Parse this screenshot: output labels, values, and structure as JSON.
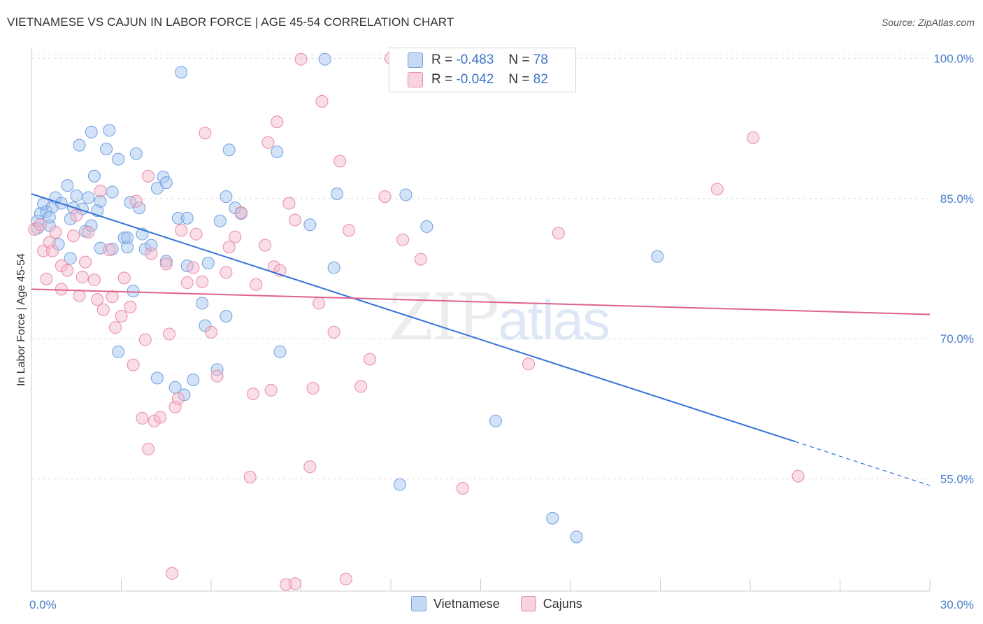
{
  "header": {
    "title": "VIETNAMESE VS CAJUN IN LABOR FORCE | AGE 45-54 CORRELATION CHART",
    "source": "Source: ZipAtlas.com"
  },
  "legend": {
    "rows": [
      {
        "r_label": "R =",
        "r_value": "-0.483",
        "n_label": "N =",
        "n_value": "78",
        "color": "#9ec0ee"
      },
      {
        "r_label": "R =",
        "r_value": "-0.042",
        "n_label": "N =",
        "n_value": "82",
        "color": "#f4b6c8"
      }
    ]
  },
  "bottom_legend": [
    {
      "label": "Vietnamese",
      "color": "#9ec0ee"
    },
    {
      "label": "Cajuns",
      "color": "#f4b6c8"
    }
  ],
  "watermark": {
    "zip": "ZIP",
    "atlas": "atlas"
  },
  "chart_data": {
    "type": "scatter",
    "title": "VIETNAMESE VS CAJUN IN LABOR FORCE | AGE 45-54 CORRELATION CHART",
    "xlabel": "",
    "ylabel": "In Labor Force | Age 45-54",
    "xlim": [
      0,
      30
    ],
    "ylim": [
      43,
      101
    ],
    "x_tick_labels": [
      {
        "value": 0,
        "label": "0.0%"
      },
      {
        "value": 30,
        "label": "30.0%"
      }
    ],
    "y_tick_labels": [
      {
        "value": 100,
        "label": "100.0%"
      },
      {
        "value": 85,
        "label": "85.0%"
      },
      {
        "value": 70,
        "label": "70.0%"
      },
      {
        "value": 55,
        "label": "55.0%"
      }
    ],
    "grid": true,
    "legend_position": "top-center",
    "series": [
      {
        "name": "Vietnamese",
        "color": "#6f9fe0",
        "fill": "rgba(158,192,238,0.45)",
        "trend": {
          "x": [
            0,
            25.5
          ],
          "y": [
            85.5,
            59.0
          ],
          "dashed_to": [
            30,
            54.3
          ],
          "color": "#3573d6"
        },
        "points": [
          [
            0.2,
            82.6
          ],
          [
            0.2,
            81.8
          ],
          [
            0.3,
            83.4
          ],
          [
            0.4,
            84.4
          ],
          [
            0.5,
            83.6
          ],
          [
            0.6,
            82.1
          ],
          [
            0.6,
            83.0
          ],
          [
            0.7,
            84.1
          ],
          [
            0.8,
            85.1
          ],
          [
            0.9,
            80.1
          ],
          [
            1.0,
            84.5
          ],
          [
            1.2,
            86.4
          ],
          [
            1.3,
            82.8
          ],
          [
            1.3,
            78.6
          ],
          [
            1.4,
            84.0
          ],
          [
            1.5,
            85.3
          ],
          [
            1.6,
            90.7
          ],
          [
            1.7,
            83.9
          ],
          [
            1.8,
            81.5
          ],
          [
            1.9,
            85.1
          ],
          [
            2.0,
            82.1
          ],
          [
            2.0,
            92.1
          ],
          [
            2.1,
            87.4
          ],
          [
            2.2,
            83.7
          ],
          [
            2.3,
            84.7
          ],
          [
            2.3,
            79.7
          ],
          [
            2.5,
            90.3
          ],
          [
            2.6,
            92.3
          ],
          [
            2.7,
            85.7
          ],
          [
            2.7,
            79.6
          ],
          [
            2.9,
            68.6
          ],
          [
            2.9,
            89.2
          ],
          [
            3.1,
            80.8
          ],
          [
            3.2,
            79.8
          ],
          [
            3.2,
            80.8
          ],
          [
            3.3,
            84.6
          ],
          [
            3.4,
            75.1
          ],
          [
            3.5,
            89.8
          ],
          [
            3.6,
            84.0
          ],
          [
            3.7,
            81.2
          ],
          [
            3.8,
            79.6
          ],
          [
            4.0,
            80.0
          ],
          [
            4.2,
            86.1
          ],
          [
            4.2,
            65.8
          ],
          [
            4.4,
            87.3
          ],
          [
            4.5,
            86.7
          ],
          [
            4.5,
            78.3
          ],
          [
            4.8,
            64.8
          ],
          [
            4.9,
            82.9
          ],
          [
            5.0,
            98.5
          ],
          [
            5.1,
            64.0
          ],
          [
            5.2,
            77.8
          ],
          [
            5.2,
            82.9
          ],
          [
            5.4,
            65.6
          ],
          [
            5.7,
            73.8
          ],
          [
            5.8,
            71.4
          ],
          [
            5.9,
            78.1
          ],
          [
            6.2,
            66.7
          ],
          [
            6.3,
            82.6
          ],
          [
            6.5,
            72.4
          ],
          [
            6.5,
            85.2
          ],
          [
            6.6,
            90.2
          ],
          [
            6.8,
            84.0
          ],
          [
            7.0,
            83.4
          ],
          [
            8.2,
            90.0
          ],
          [
            8.3,
            68.6
          ],
          [
            9.3,
            82.2
          ],
          [
            9.8,
            99.9
          ],
          [
            10.2,
            85.5
          ],
          [
            10.1,
            77.6
          ],
          [
            12.3,
            54.4
          ],
          [
            12.5,
            85.4
          ],
          [
            15.5,
            61.2
          ],
          [
            17.4,
            50.8
          ],
          [
            18.2,
            48.8
          ],
          [
            20.9,
            78.8
          ],
          [
            13.2,
            82.0
          ]
        ]
      },
      {
        "name": "Cajuns",
        "color": "#e98aa8",
        "fill": "rgba(244,182,200,0.45)",
        "trend": {
          "x": [
            0,
            30
          ],
          "y": [
            75.3,
            72.6
          ],
          "color": "#e0628c"
        },
        "points": [
          [
            0.1,
            81.7
          ],
          [
            0.3,
            82.2
          ],
          [
            0.4,
            79.4
          ],
          [
            0.5,
            76.4
          ],
          [
            0.6,
            80.3
          ],
          [
            0.7,
            79.4
          ],
          [
            0.8,
            81.4
          ],
          [
            1.0,
            75.3
          ],
          [
            1.0,
            77.8
          ],
          [
            1.2,
            77.3
          ],
          [
            1.4,
            81.0
          ],
          [
            1.5,
            83.2
          ],
          [
            1.6,
            74.6
          ],
          [
            1.7,
            76.6
          ],
          [
            1.8,
            78.2
          ],
          [
            1.9,
            81.4
          ],
          [
            2.1,
            76.3
          ],
          [
            2.2,
            74.2
          ],
          [
            2.3,
            85.8
          ],
          [
            2.4,
            73.1
          ],
          [
            2.6,
            79.5
          ],
          [
            2.7,
            74.5
          ],
          [
            2.8,
            71.2
          ],
          [
            3.0,
            72.4
          ],
          [
            3.1,
            76.5
          ],
          [
            3.3,
            73.4
          ],
          [
            3.4,
            67.2
          ],
          [
            3.5,
            84.7
          ],
          [
            3.7,
            61.5
          ],
          [
            3.8,
            69.9
          ],
          [
            3.9,
            87.4
          ],
          [
            4.0,
            79.1
          ],
          [
            4.1,
            61.2
          ],
          [
            4.3,
            61.6
          ],
          [
            4.5,
            78.0
          ],
          [
            4.6,
            70.5
          ],
          [
            4.7,
            44.9
          ],
          [
            4.8,
            62.7
          ],
          [
            4.9,
            63.6
          ],
          [
            5.0,
            81.6
          ],
          [
            5.2,
            76.0
          ],
          [
            5.4,
            77.6
          ],
          [
            5.5,
            81.2
          ],
          [
            5.7,
            76.1
          ],
          [
            5.8,
            92.0
          ],
          [
            6.0,
            70.7
          ],
          [
            6.2,
            66.0
          ],
          [
            6.5,
            77.1
          ],
          [
            6.6,
            79.8
          ],
          [
            6.8,
            80.9
          ],
          [
            7.0,
            83.5
          ],
          [
            7.3,
            55.2
          ],
          [
            7.4,
            64.1
          ],
          [
            7.5,
            75.8
          ],
          [
            7.8,
            80.0
          ],
          [
            7.9,
            91.0
          ],
          [
            8.0,
            64.5
          ],
          [
            8.1,
            77.7
          ],
          [
            8.2,
            93.2
          ],
          [
            8.3,
            77.3
          ],
          [
            8.5,
            43.7
          ],
          [
            8.6,
            84.5
          ],
          [
            8.8,
            43.8
          ],
          [
            8.8,
            82.7
          ],
          [
            9.0,
            99.9
          ],
          [
            9.3,
            56.3
          ],
          [
            9.4,
            64.7
          ],
          [
            9.6,
            73.8
          ],
          [
            9.7,
            95.4
          ],
          [
            10.1,
            70.7
          ],
          [
            10.3,
            89.0
          ],
          [
            10.5,
            44.3
          ],
          [
            10.6,
            81.6
          ],
          [
            11.0,
            64.9
          ],
          [
            11.3,
            67.8
          ],
          [
            11.8,
            85.2
          ],
          [
            12.0,
            100.0
          ],
          [
            12.4,
            80.6
          ],
          [
            13.0,
            78.5
          ],
          [
            14.4,
            54.0
          ],
          [
            16.6,
            67.3
          ],
          [
            17.6,
            81.3
          ],
          [
            22.9,
            86.0
          ],
          [
            24.1,
            91.5
          ],
          [
            25.6,
            55.3
          ],
          [
            3.9,
            58.2
          ]
        ]
      }
    ]
  }
}
